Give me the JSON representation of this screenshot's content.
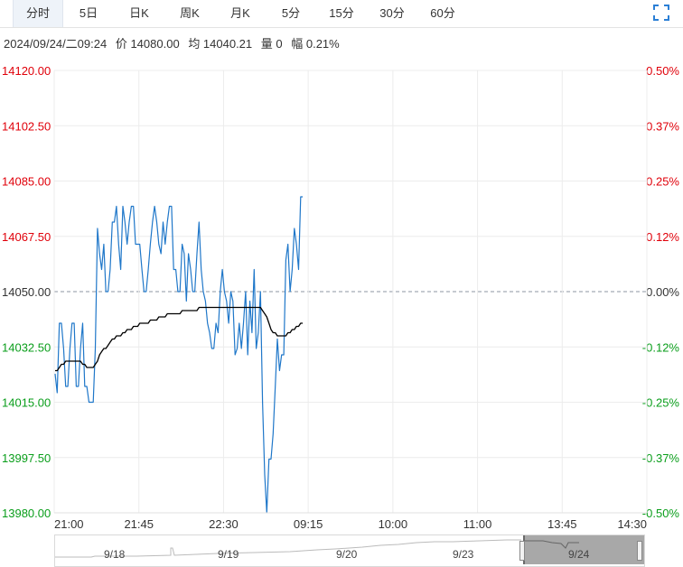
{
  "tabs": [
    {
      "label": "分时",
      "active": true
    },
    {
      "label": "5日"
    },
    {
      "label": "日K"
    },
    {
      "label": "周K"
    },
    {
      "label": "月K"
    },
    {
      "label": "5分"
    },
    {
      "label": "15分"
    },
    {
      "label": "30分"
    },
    {
      "label": "60分"
    }
  ],
  "icons": {
    "fullscreen": "fullscreen-icon"
  },
  "info": {
    "datetime": "2024/09/24/二09:24",
    "price": "价 14080.00",
    "avg": "均 14040.21",
    "volume": "量 0",
    "change": "幅 0.21%"
  },
  "colors": {
    "price_line": "#1f77c9",
    "avg_line": "#000000",
    "up": "#e0000a",
    "down": "#0a9e1b",
    "neutral": "#333333",
    "grid": "#ececec"
  },
  "chart_data": {
    "type": "line",
    "ylim": [
      13980,
      14120
    ],
    "base": 14050,
    "y_ticks": [
      "14120.00",
      "14102.50",
      "14085.00",
      "14067.50",
      "14050.00",
      "14032.50",
      "14015.00",
      "13997.50",
      "13980.00"
    ],
    "pct_ticks": [
      "0.50%",
      "0.37%",
      "0.25%",
      "0.12%",
      "0.00%",
      "-0.12%",
      "-0.25%",
      "-0.37%",
      "-0.50%"
    ],
    "x_ticks": [
      "21:00",
      "21:45",
      "22:30",
      "09:15",
      "10:00",
      "11:00",
      "13:45",
      "14:30"
    ],
    "price": [
      14024,
      14018,
      14040,
      14040,
      14032,
      14020,
      14020,
      14032,
      14040,
      14040,
      14020,
      14020,
      14032,
      14040,
      14020,
      14020,
      14015,
      14015,
      14015,
      14032,
      14070,
      14062,
      14057,
      14065,
      14050,
      14050,
      14057,
      14072,
      14072,
      14077,
      14065,
      14057,
      14077,
      14072,
      14065,
      14072,
      14077,
      14077,
      14065,
      14065,
      14065,
      14057,
      14050,
      14050,
      14057,
      14065,
      14072,
      14077,
      14072,
      14065,
      14062,
      14072,
      14065,
      14072,
      14077,
      14077,
      14057,
      14057,
      14050,
      14050,
      14065,
      14062,
      14047,
      14062,
      14057,
      14050,
      14050,
      14062,
      14072,
      14057,
      14050,
      14047,
      14040,
      14037,
      14032,
      14032,
      14040,
      14037,
      14050,
      14057,
      14050,
      14047,
      14040,
      14050,
      14047,
      14030,
      14032,
      14040,
      14032,
      14040,
      14050,
      14030,
      14047,
      14037,
      14057,
      14032,
      14037,
      14050,
      14015,
      13992,
      13980,
      13997,
      13997,
      14005,
      14020,
      14035,
      14025,
      14030,
      14030,
      14060,
      14065,
      14050,
      14057,
      14070,
      14065,
      14057,
      14080,
      14080
    ],
    "avg": [
      14025,
      14025,
      14026,
      14027,
      14027,
      14028,
      14028,
      14028,
      14028,
      14028,
      14028,
      14028,
      14028,
      14027,
      14027,
      14026,
      14026,
      14026,
      14026,
      14027,
      14028,
      14030,
      14031,
      14032,
      14032,
      14033,
      14034,
      14035,
      14035,
      14036,
      14036,
      14036,
      14037,
      14037,
      14038,
      14038,
      14038,
      14039,
      14039,
      14039,
      14040,
      14040,
      14040,
      14040,
      14040,
      14041,
      14041,
      14041,
      14041,
      14042,
      14042,
      14042,
      14042,
      14043,
      14043,
      14043,
      14043,
      14043,
      14043,
      14043,
      14044,
      14044,
      14044,
      14044,
      14044,
      14044,
      14044,
      14044,
      14045,
      14045,
      14045,
      14045,
      14045,
      14045,
      14045,
      14045,
      14045,
      14045,
      14045,
      14045,
      14045,
      14045,
      14045,
      14045,
      14045,
      14045,
      14045,
      14045,
      14045,
      14045,
      14045,
      14045,
      14045,
      14045,
      14045,
      14045,
      14045,
      14045,
      14044,
      14043,
      14042,
      14040,
      14038,
      14037,
      14037,
      14036,
      14036,
      14036,
      14036,
      14036,
      14037,
      14037,
      14038,
      14038,
      14039,
      14039,
      14040,
      14040
    ]
  },
  "navigator": {
    "labels": [
      "9/18",
      "9/19",
      "9/20",
      "9/23",
      "9/24"
    ]
  }
}
